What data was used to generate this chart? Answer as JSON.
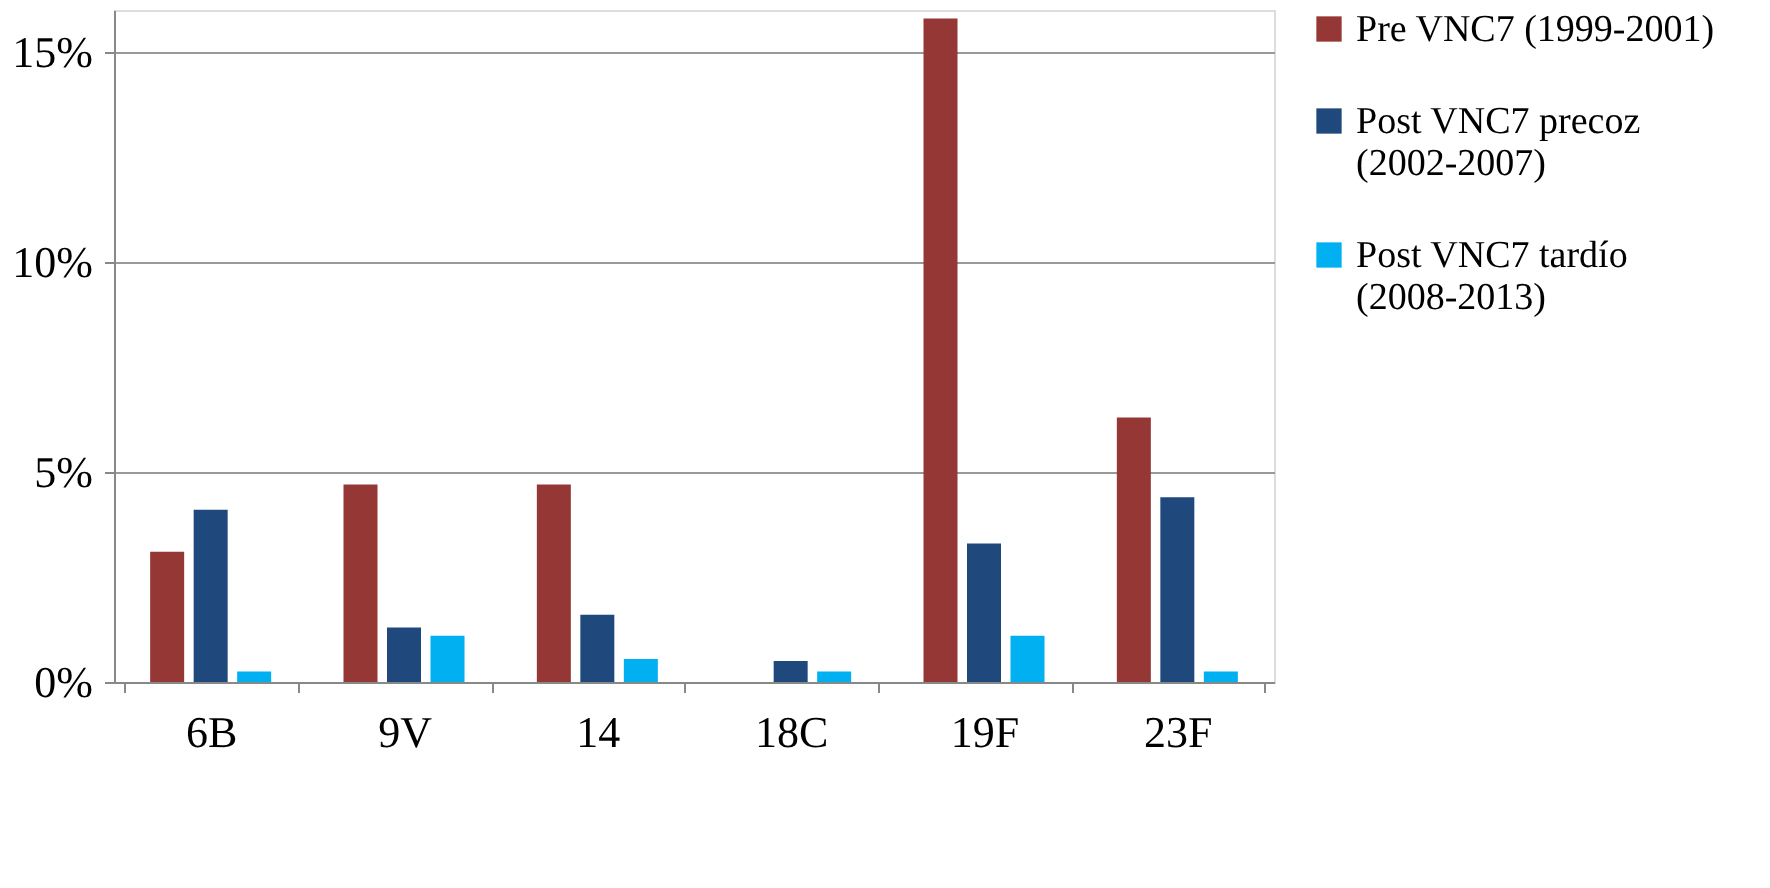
{
  "chart_data": {
    "type": "bar",
    "categories": [
      "6B",
      "9V",
      "14",
      "18C",
      "19F",
      "23F"
    ],
    "series": [
      {
        "name": "Pre VNC7 (1999-2001)",
        "color": "#953735",
        "values": [
          3.1,
          4.7,
          4.7,
          0,
          15.8,
          6.3
        ]
      },
      {
        "name": "Post VNC7 precoz (2002-2007)",
        "color": "#1f497d",
        "values": [
          4.1,
          1.3,
          1.6,
          0.5,
          3.3,
          4.4
        ]
      },
      {
        "name": "Post VNC7 tardío (2008-2013)",
        "color": "#00b0f0",
        "values": [
          0.25,
          1.1,
          0.55,
          0.25,
          1.1,
          0.25
        ]
      }
    ],
    "ylim": [
      0,
      16
    ],
    "yticks": [
      {
        "value": 0,
        "label": "0%"
      },
      {
        "value": 5,
        "label": "5%"
      },
      {
        "value": 10,
        "label": "10%"
      },
      {
        "value": 15,
        "label": "15%"
      }
    ],
    "grid": "y",
    "legend": "right"
  }
}
